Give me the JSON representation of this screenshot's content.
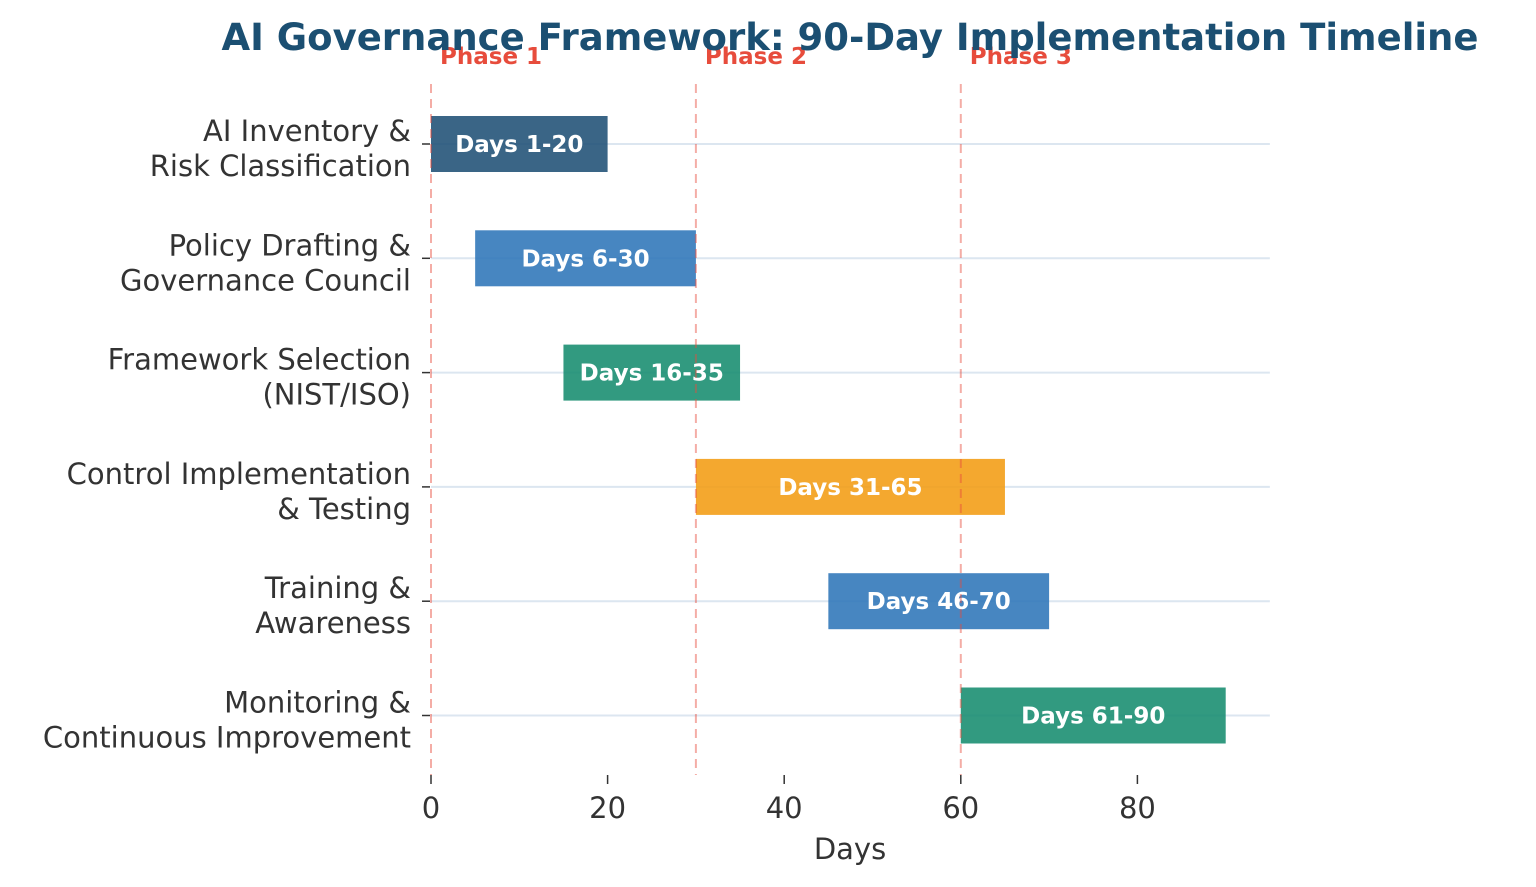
{
  "chart_data": {
    "type": "bar",
    "orientation": "horizontal",
    "title": "AI Governance Framework: 90-Day Implementation Timeline",
    "xlabel": "Days",
    "ylabel": "",
    "xlim": [
      0,
      95
    ],
    "xticks": [
      0,
      20,
      40,
      60,
      80
    ],
    "grid": "horizontal lines at each task row",
    "tasks": [
      {
        "name": "AI Inventory &\nRisk Classification",
        "lines": [
          "AI Inventory &",
          "Risk Classification"
        ],
        "start": 0,
        "end": 20,
        "label": "Days 1-20",
        "color": "#1f5075"
      },
      {
        "name": "Policy Drafting &\nGovernance Council",
        "lines": [
          "Policy Drafting &",
          "Governance Council"
        ],
        "start": 5,
        "end": 30,
        "label": "Days 6-30",
        "color": "#2e75b8"
      },
      {
        "name": "Framework Selection\n(NIST/ISO)",
        "lines": [
          "Framework Selection",
          "(NIST/ISO)"
        ],
        "start": 15,
        "end": 35,
        "label": "Days 16-35",
        "color": "#168c6e"
      },
      {
        "name": "Control Implementation\n& Testing",
        "lines": [
          "Control Implementation",
          "& Testing"
        ],
        "start": 30,
        "end": 65,
        "label": "Days 31-65",
        "color": "#f39c12"
      },
      {
        "name": "Training &\nAwareness",
        "lines": [
          "Training &",
          "Awareness"
        ],
        "start": 45,
        "end": 70,
        "label": "Days 46-70",
        "color": "#2e75b8"
      },
      {
        "name": "Monitoring &\nContinuous Improvement",
        "lines": [
          "Monitoring &",
          "Continuous Improvement"
        ],
        "start": 60,
        "end": 90,
        "label": "Days 61-90",
        "color": "#168c6e"
      }
    ],
    "phases": [
      {
        "label": "Phase 1",
        "day": 0
      },
      {
        "label": "Phase 2",
        "day": 30
      },
      {
        "label": "Phase 3",
        "day": 60
      }
    ],
    "colors": {
      "title": "#1b4f72",
      "phase": "#e74c3c",
      "grid": "#dce6f0",
      "text": "#333333"
    }
  }
}
